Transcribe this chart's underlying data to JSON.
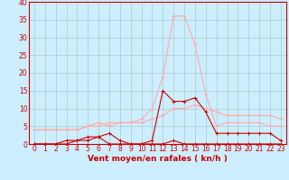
{
  "x": [
    0,
    1,
    2,
    3,
    4,
    5,
    6,
    7,
    8,
    9,
    10,
    11,
    12,
    13,
    14,
    15,
    16,
    17,
    18,
    19,
    20,
    21,
    22,
    23
  ],
  "line1_y": [
    0,
    0,
    0,
    1,
    1,
    1,
    2,
    0,
    0,
    0,
    0,
    0,
    0,
    1,
    0,
    0,
    0,
    0,
    0,
    0,
    0,
    0,
    0,
    0
  ],
  "line2_y": [
    4,
    4,
    4,
    4,
    4,
    5,
    5,
    6,
    6,
    6,
    6,
    7,
    8,
    10,
    10,
    11,
    10,
    9,
    8,
    8,
    8,
    8,
    8,
    7
  ],
  "line3_y": [
    0,
    0,
    0,
    0,
    1,
    2,
    2,
    3,
    1,
    0,
    0,
    1,
    15,
    12,
    12,
    13,
    9,
    3,
    3,
    3,
    3,
    3,
    3,
    1
  ],
  "line4_y": [
    4,
    4,
    4,
    4,
    4,
    5,
    6,
    5,
    6,
    6,
    7,
    10,
    19,
    36,
    36,
    28,
    14,
    5,
    6,
    6,
    6,
    6,
    5,
    5
  ],
  "bg_color": "#cceeff",
  "grid_color": "#aacccc",
  "line1_color": "#cc0000",
  "line2_color": "#ffaaaa",
  "line3_color": "#cc0000",
  "line4_color": "#ffaaaa",
  "xlabel": "Vent moyen/en rafales ( kn/h )",
  "xlim_min": -0.5,
  "xlim_max": 23.5,
  "ylim_min": 0,
  "ylim_max": 40,
  "yticks": [
    0,
    5,
    10,
    15,
    20,
    25,
    30,
    35,
    40
  ],
  "xticks": [
    0,
    1,
    2,
    3,
    4,
    5,
    6,
    7,
    8,
    9,
    10,
    11,
    12,
    13,
    14,
    15,
    16,
    17,
    18,
    19,
    20,
    21,
    22,
    23
  ],
  "tick_fontsize": 5.5,
  "xlabel_fontsize": 6.5
}
